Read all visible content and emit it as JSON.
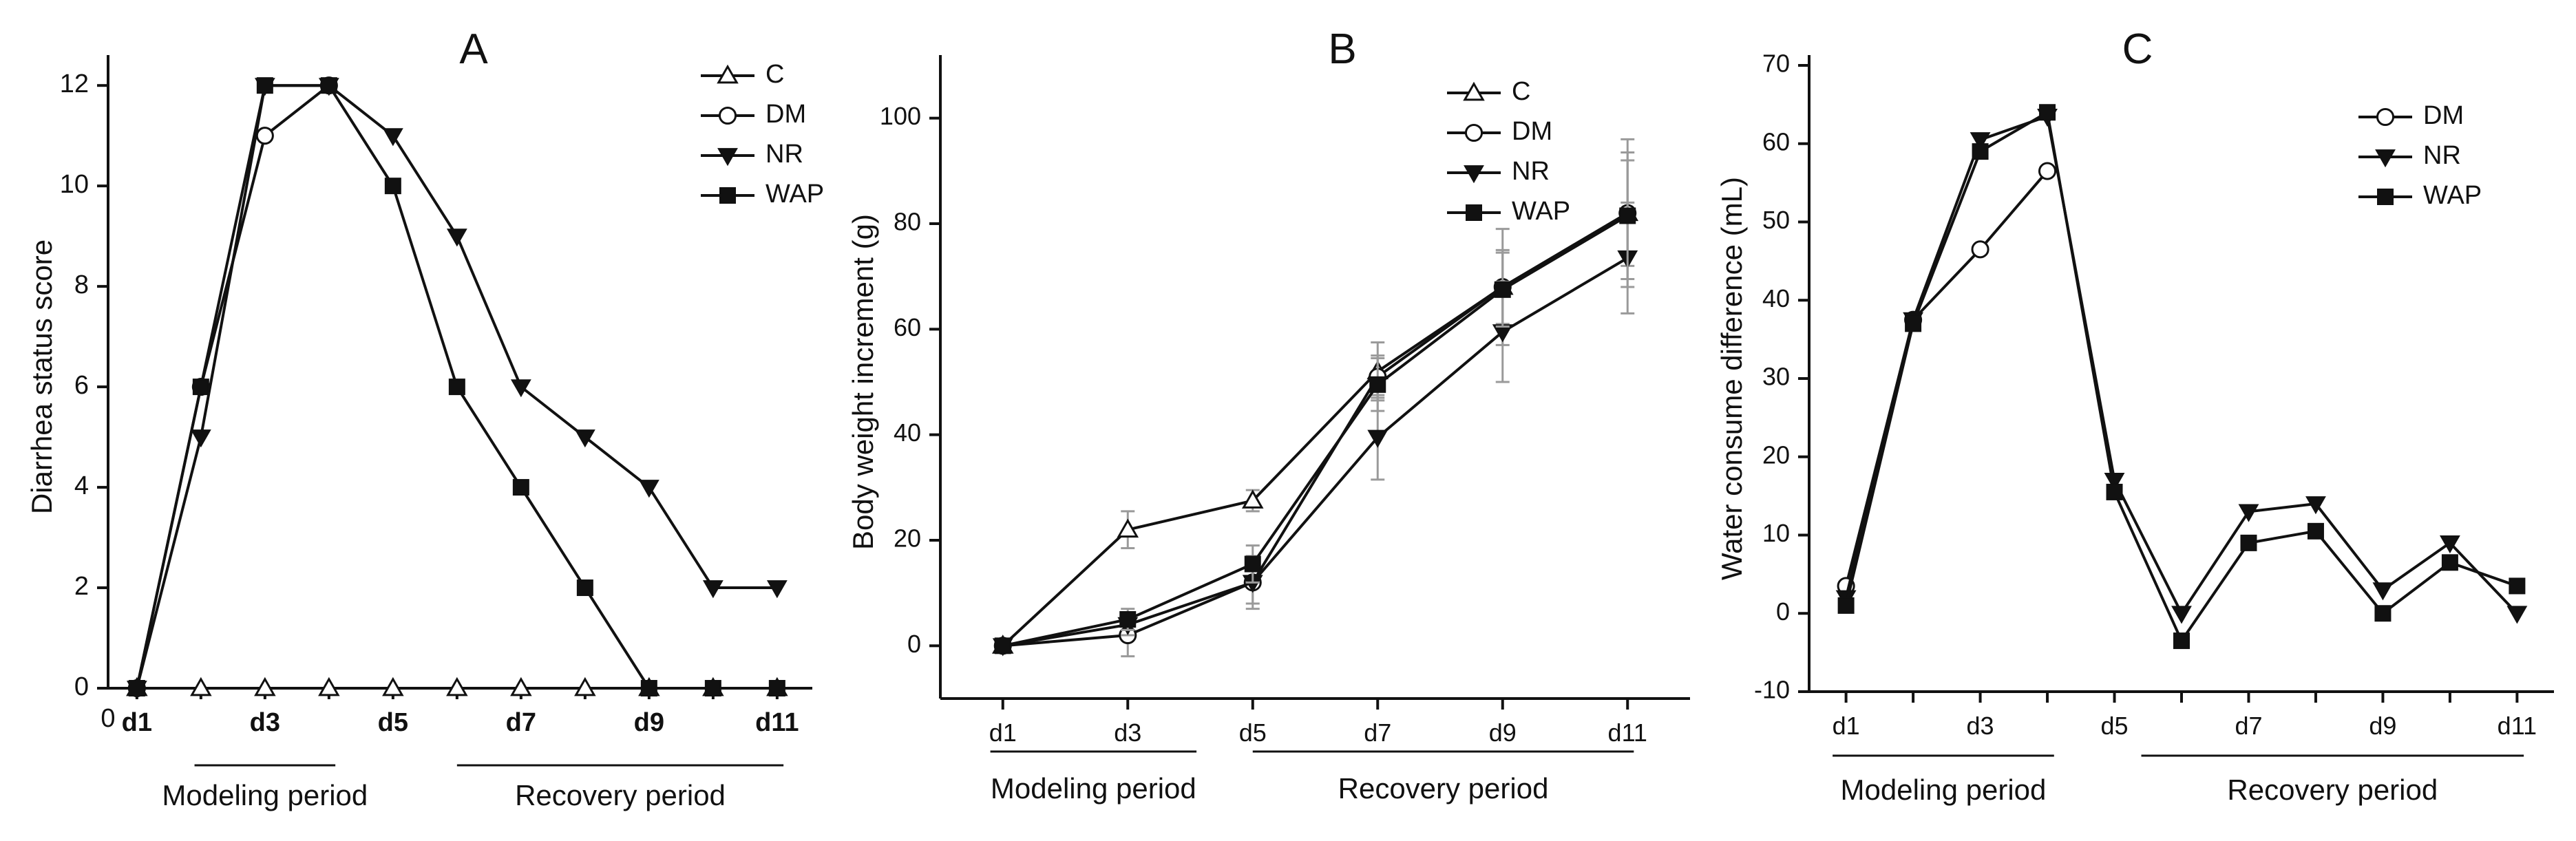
{
  "colors": {
    "axis": "#111111",
    "line": "#111111",
    "errorbar": "#9a9a9a",
    "open_marker_fill": "#ffffff",
    "ylabel_A": "#8b2c1c"
  },
  "chart_data": [
    {
      "id": "A",
      "type": "line",
      "panel_label": "A",
      "ylabel": "Diarrhea status score",
      "xlabel": "",
      "ylim": [
        0,
        12.4
      ],
      "yticks": [
        0,
        2,
        4,
        6,
        8,
        10,
        12
      ],
      "x_origin_label": "0",
      "xlim": [
        0.55,
        11.55
      ],
      "xticks": [
        1,
        2,
        3,
        4,
        5,
        6,
        7,
        8,
        9,
        10,
        11
      ],
      "xtick_labels": [
        {
          "x": 1,
          "text": "d1"
        },
        {
          "x": 3,
          "text": "d3"
        },
        {
          "x": 5,
          "text": "d5"
        },
        {
          "x": 7,
          "text": "d7"
        },
        {
          "x": 9,
          "text": "d9"
        },
        {
          "x": 11,
          "text": "d11"
        }
      ],
      "periods": [
        {
          "label": "Modeling period",
          "from": 1.9,
          "to": 4.1
        },
        {
          "label": "Recovery period",
          "from": 6.0,
          "to": 11.1
        }
      ],
      "legend": {
        "position": "top-right"
      },
      "series": [
        {
          "name": "C",
          "marker": "triangle-up-open",
          "x": [
            1,
            2,
            3,
            4,
            5,
            6,
            7,
            8,
            9,
            10,
            11
          ],
          "values": [
            0,
            0,
            0,
            0,
            0,
            0,
            0,
            0,
            0,
            0,
            0
          ]
        },
        {
          "name": "DM",
          "marker": "circle-open",
          "x": [
            1,
            2,
            3,
            4
          ],
          "values": [
            0,
            6,
            11,
            12
          ]
        },
        {
          "name": "NR",
          "marker": "triangle-down-filled",
          "x": [
            1,
            2,
            3,
            4,
            5,
            6,
            7,
            8,
            9,
            10,
            11
          ],
          "values": [
            0,
            5,
            12,
            12,
            11,
            9,
            6,
            5,
            4,
            2,
            2
          ]
        },
        {
          "name": "WAP",
          "marker": "square-filled",
          "x": [
            1,
            2,
            3,
            4,
            5,
            6,
            7,
            8,
            9,
            10,
            11
          ],
          "values": [
            0,
            6,
            12,
            12,
            10,
            6,
            4,
            2,
            0,
            0,
            0
          ]
        }
      ]
    },
    {
      "id": "B",
      "type": "line",
      "panel_label": "B",
      "ylabel": "Body weight increment (g)",
      "xlabel": "",
      "ylim": [
        -10,
        110
      ],
      "yticks": [
        0,
        20,
        40,
        60,
        80,
        100
      ],
      "xlim": [
        0,
        12
      ],
      "xticks": [
        1,
        3,
        5,
        7,
        9,
        11
      ],
      "xtick_labels": [
        {
          "x": 1,
          "text": "d1"
        },
        {
          "x": 3,
          "text": "d3"
        },
        {
          "x": 5,
          "text": "d5"
        },
        {
          "x": 7,
          "text": "d7"
        },
        {
          "x": 9,
          "text": "d9"
        },
        {
          "x": 11,
          "text": "d11"
        }
      ],
      "periods": [
        {
          "label": "Modeling period",
          "from": 0.8,
          "to": 4.1
        },
        {
          "label": "Recovery period",
          "from": 5.0,
          "to": 11.1
        }
      ],
      "legend": {
        "position": "top-center"
      },
      "series": [
        {
          "name": "C",
          "marker": "triangle-up-open",
          "x": [
            1,
            3,
            5,
            7,
            9,
            11
          ],
          "values": [
            0,
            22,
            27.5,
            52,
            68,
            82
          ],
          "err": [
            0,
            3.5,
            2,
            5.5,
            11,
            14
          ]
        },
        {
          "name": "DM",
          "marker": "circle-open",
          "x": [
            1,
            3,
            5,
            7,
            9,
            11
          ],
          "values": [
            0,
            2,
            12,
            51,
            68,
            82
          ],
          "err": [
            0,
            4,
            5,
            4,
            7,
            10
          ]
        },
        {
          "name": "NR",
          "marker": "triangle-down-filled",
          "x": [
            1,
            3,
            5,
            7,
            9,
            11
          ],
          "values": [
            0,
            4,
            12,
            39.5,
            59.5,
            73.5
          ],
          "err": [
            0,
            2,
            4,
            8,
            9.5,
            10.5
          ]
        },
        {
          "name": "WAP",
          "marker": "square-filled",
          "x": [
            1,
            3,
            5,
            7,
            9,
            11
          ],
          "values": [
            0,
            5,
            15.5,
            49.5,
            67.5,
            81.5
          ],
          "err": [
            0,
            2,
            3.5,
            5,
            7,
            12
          ]
        }
      ]
    },
    {
      "id": "C",
      "type": "line",
      "panel_label": "C",
      "ylabel": "Water consume difference (mL)",
      "xlabel": "",
      "ylim": [
        -10,
        70
      ],
      "yticks": [
        -10,
        0,
        10,
        20,
        30,
        40,
        50,
        60,
        70
      ],
      "xlim": [
        0.45,
        11.55
      ],
      "xticks": [
        1,
        2,
        3,
        4,
        5,
        6,
        7,
        8,
        9,
        10,
        11
      ],
      "xtick_labels": [
        {
          "x": 1,
          "text": "d1"
        },
        {
          "x": 3,
          "text": "d3"
        },
        {
          "x": 5,
          "text": "d5"
        },
        {
          "x": 7,
          "text": "d7"
        },
        {
          "x": 9,
          "text": "d9"
        },
        {
          "x": 11,
          "text": "d11"
        }
      ],
      "periods": [
        {
          "label": "Modeling period",
          "from": 0.8,
          "to": 4.1
        },
        {
          "label": "Recovery period",
          "from": 5.4,
          "to": 11.1
        }
      ],
      "legend": {
        "position": "top-right"
      },
      "series": [
        {
          "name": "DM",
          "marker": "circle-open",
          "x": [
            1,
            2,
            3,
            4
          ],
          "values": [
            3.5,
            37.5,
            46.5,
            56.5
          ]
        },
        {
          "name": "NR",
          "marker": "triangle-down-filled",
          "x": [
            1,
            2,
            3,
            4,
            5,
            6,
            7,
            8,
            9,
            10,
            11
          ],
          "values": [
            2,
            37.5,
            60.5,
            63.5,
            17,
            0,
            13,
            14,
            3,
            9,
            0
          ]
        },
        {
          "name": "WAP",
          "marker": "square-filled",
          "x": [
            1,
            2,
            3,
            4,
            5,
            6,
            7,
            8,
            9,
            10,
            11
          ],
          "values": [
            1,
            37,
            59,
            64,
            15.5,
            -3.5,
            9,
            10.5,
            0,
            6.5,
            3.5
          ]
        }
      ]
    }
  ]
}
